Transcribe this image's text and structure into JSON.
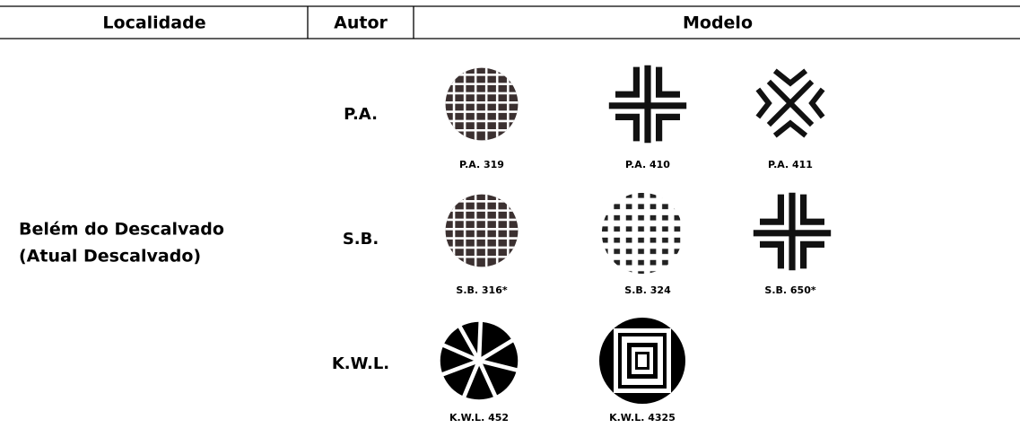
{
  "header": {
    "localidade": "Localidade",
    "autor": "Autor",
    "modelo": "Modelo"
  },
  "localidade": [
    "Belém do Descalvado",
    "(Atual Descalvado)"
  ],
  "rows": [
    {
      "autor": "P.A.",
      "modelos": [
        "P.A. 319",
        "P.A. 410",
        "P.A. 411"
      ]
    },
    {
      "autor": "S.B.",
      "modelos": [
        "S.B. 316*",
        "S.B. 324",
        "S.B. 650*"
      ]
    },
    {
      "autor": "K.W.L.",
      "modelos": [
        "K.W.L. 452",
        "K.W.L. 4325"
      ]
    }
  ]
}
